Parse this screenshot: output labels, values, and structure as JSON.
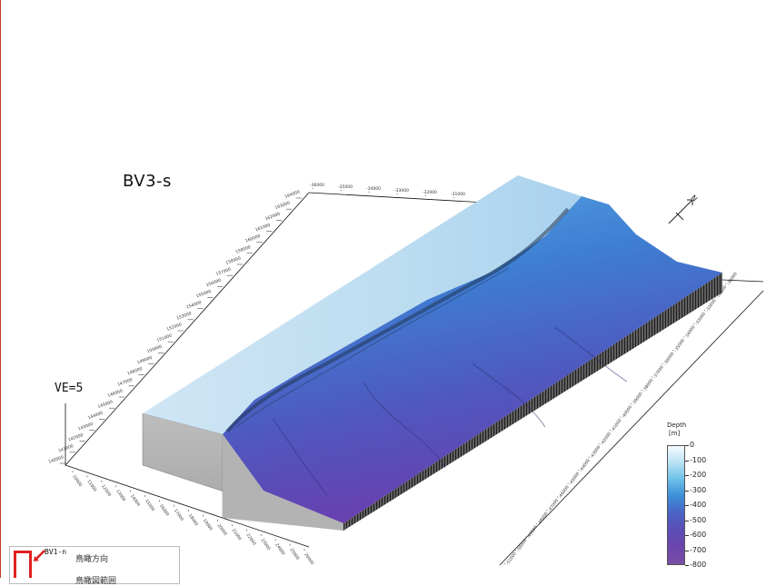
{
  "title": "BV3-s",
  "vertical_exaggeration": "VE=5",
  "north_label": "N",
  "legend": {
    "title": "Depth",
    "unit": "[m]",
    "labels": [
      "0",
      "-100",
      "-200",
      "-300",
      "-400",
      "-500",
      "-600",
      "-700",
      "-800"
    ],
    "colors": [
      "#f4fbff",
      "#b9e2f4",
      "#6dc0e8",
      "#3d8fd8",
      "#4a64c4",
      "#5a4fb8",
      "#6a45ad",
      "#7a4ea6"
    ]
  },
  "inset": {
    "tag": "BV1-n",
    "line1": "鳥瞰方向",
    "line2": "鳥瞰図範囲"
  },
  "axes": {
    "back_left_ticks": [
      "140000",
      "141000",
      "142000",
      "143000",
      "144000",
      "145000",
      "146000",
      "147000",
      "148000",
      "149000",
      "150000",
      "151000",
      "152000",
      "153000",
      "154000",
      "155000",
      "156000",
      "157000",
      "158000",
      "159000",
      "160000",
      "161000",
      "162000",
      "163000",
      "164000"
    ],
    "back_top_ticks": [
      "-36000",
      "-35000",
      "-34000",
      "-33000",
      "-32000",
      "-31000"
    ],
    "right_ticks": [
      "-30000",
      "-31000",
      "-32000",
      "-33000",
      "-34000",
      "-35000",
      "-36000",
      "-37000",
      "-38000",
      "-39000",
      "-40000",
      "-41000",
      "-42000",
      "-43000",
      "-44000",
      "-45000",
      "-46000",
      "-47000",
      "-48000",
      "-49000",
      "-50000",
      "-51000"
    ],
    "front_ticks": [
      "10000",
      "11000",
      "12000",
      "13000",
      "14000",
      "15000",
      "16000",
      "17000",
      "18000",
      "19000",
      "20000",
      "21000",
      "22000",
      "23000",
      "24000",
      "25000",
      "26000"
    ]
  }
}
